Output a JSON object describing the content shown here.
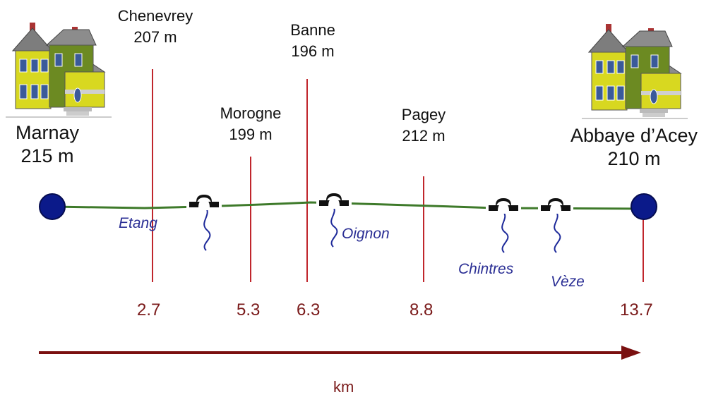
{
  "start": {
    "name": "Marnay",
    "altitude": "215 m"
  },
  "end": {
    "name": "Abbaye d’Acey",
    "altitude": "210 m"
  },
  "villages": [
    {
      "name": "Chenevrey",
      "altitude": "207 m"
    },
    {
      "name": "Morogne",
      "altitude": "199 m"
    },
    {
      "name": "Banne",
      "altitude": "196 m"
    },
    {
      "name": "Pagey",
      "altitude": "212 m"
    }
  ],
  "rivers": [
    "Etang",
    "Oignon",
    "Chintres",
    "Vèze"
  ],
  "distances": [
    "2.7",
    "5.3",
    "6.3",
    "8.8",
    "13.7"
  ],
  "unit": "km",
  "colors": {
    "marker": "#c0262c",
    "arrow": "#7a1010",
    "route": "#3e7a2a",
    "endpoint": "#0b1a8a",
    "river": "#1e2a9a",
    "house": "#d8d820"
  },
  "icons": [
    "house-icon",
    "bridge-icon",
    "river-icon",
    "endpoint-dot-icon"
  ]
}
